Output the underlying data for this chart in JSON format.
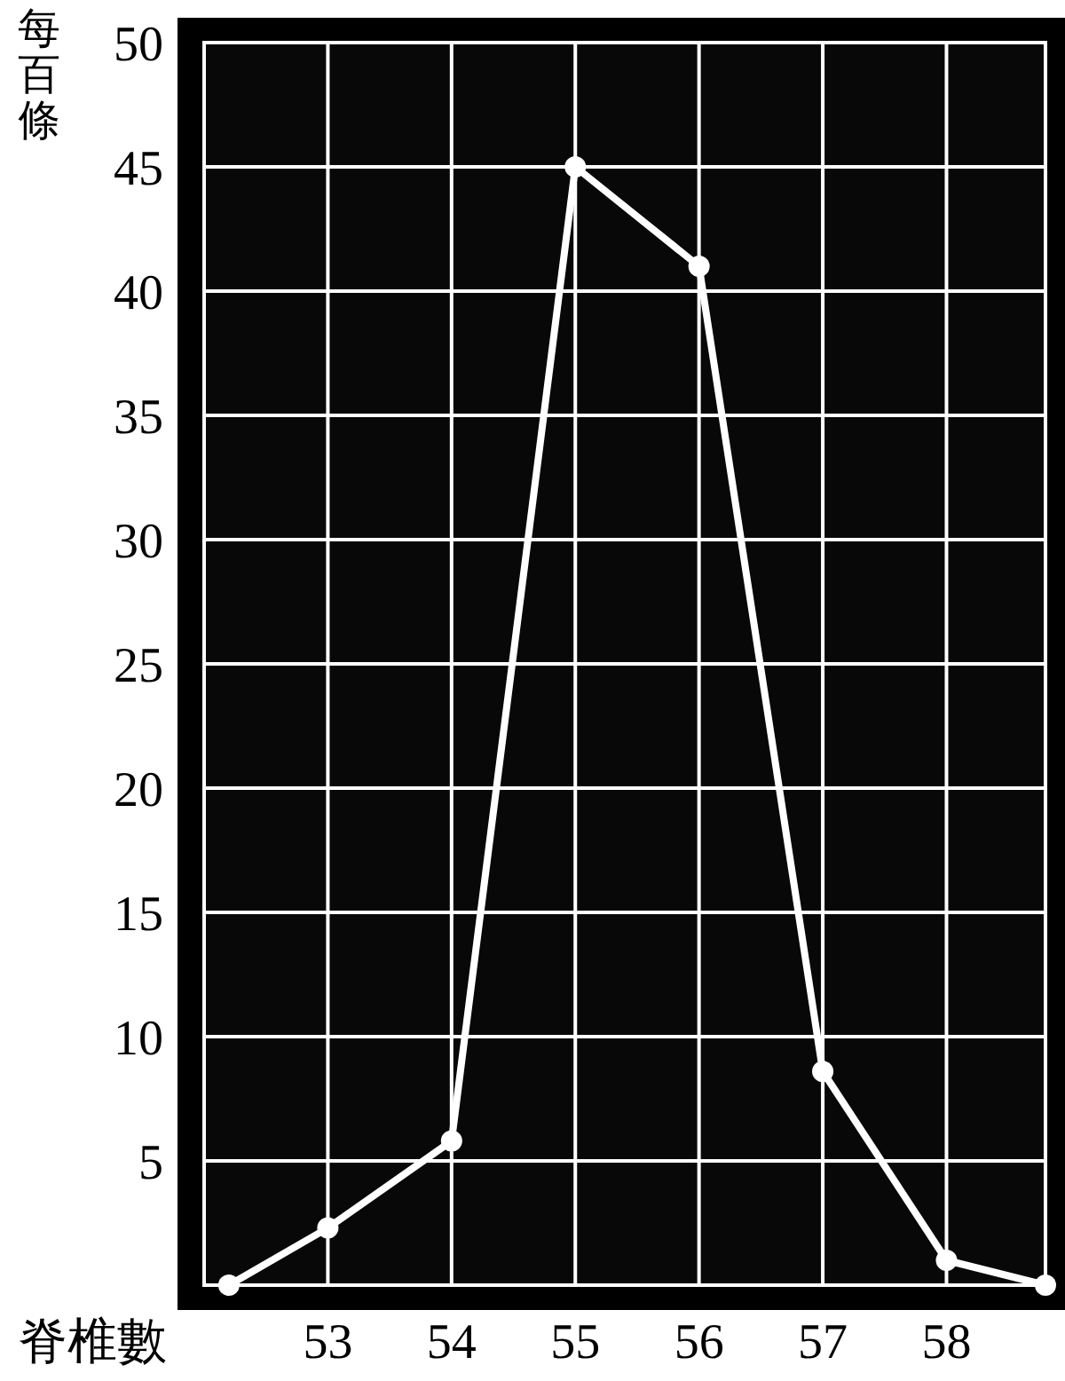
{
  "chart_data": {
    "type": "line",
    "xlabel": "脊椎數",
    "ylabel": "每百條",
    "x": [
      52.2,
      53,
      54,
      55,
      56,
      57,
      58,
      58.8
    ],
    "series": [
      {
        "color": "#ffffff",
        "values": [
          0,
          2.3,
          5.8,
          45,
          41,
          8.6,
          1,
          0
        ]
      }
    ],
    "xlim": [
      52,
      58.8
    ],
    "ylim": [
      0,
      50
    ],
    "xticks": [
      53,
      54,
      55,
      56,
      57,
      58
    ],
    "yticks": [
      5,
      10,
      15,
      20,
      25,
      30,
      35,
      40,
      45,
      50
    ],
    "grid": true,
    "marker": "circle",
    "line_style": "solid"
  }
}
